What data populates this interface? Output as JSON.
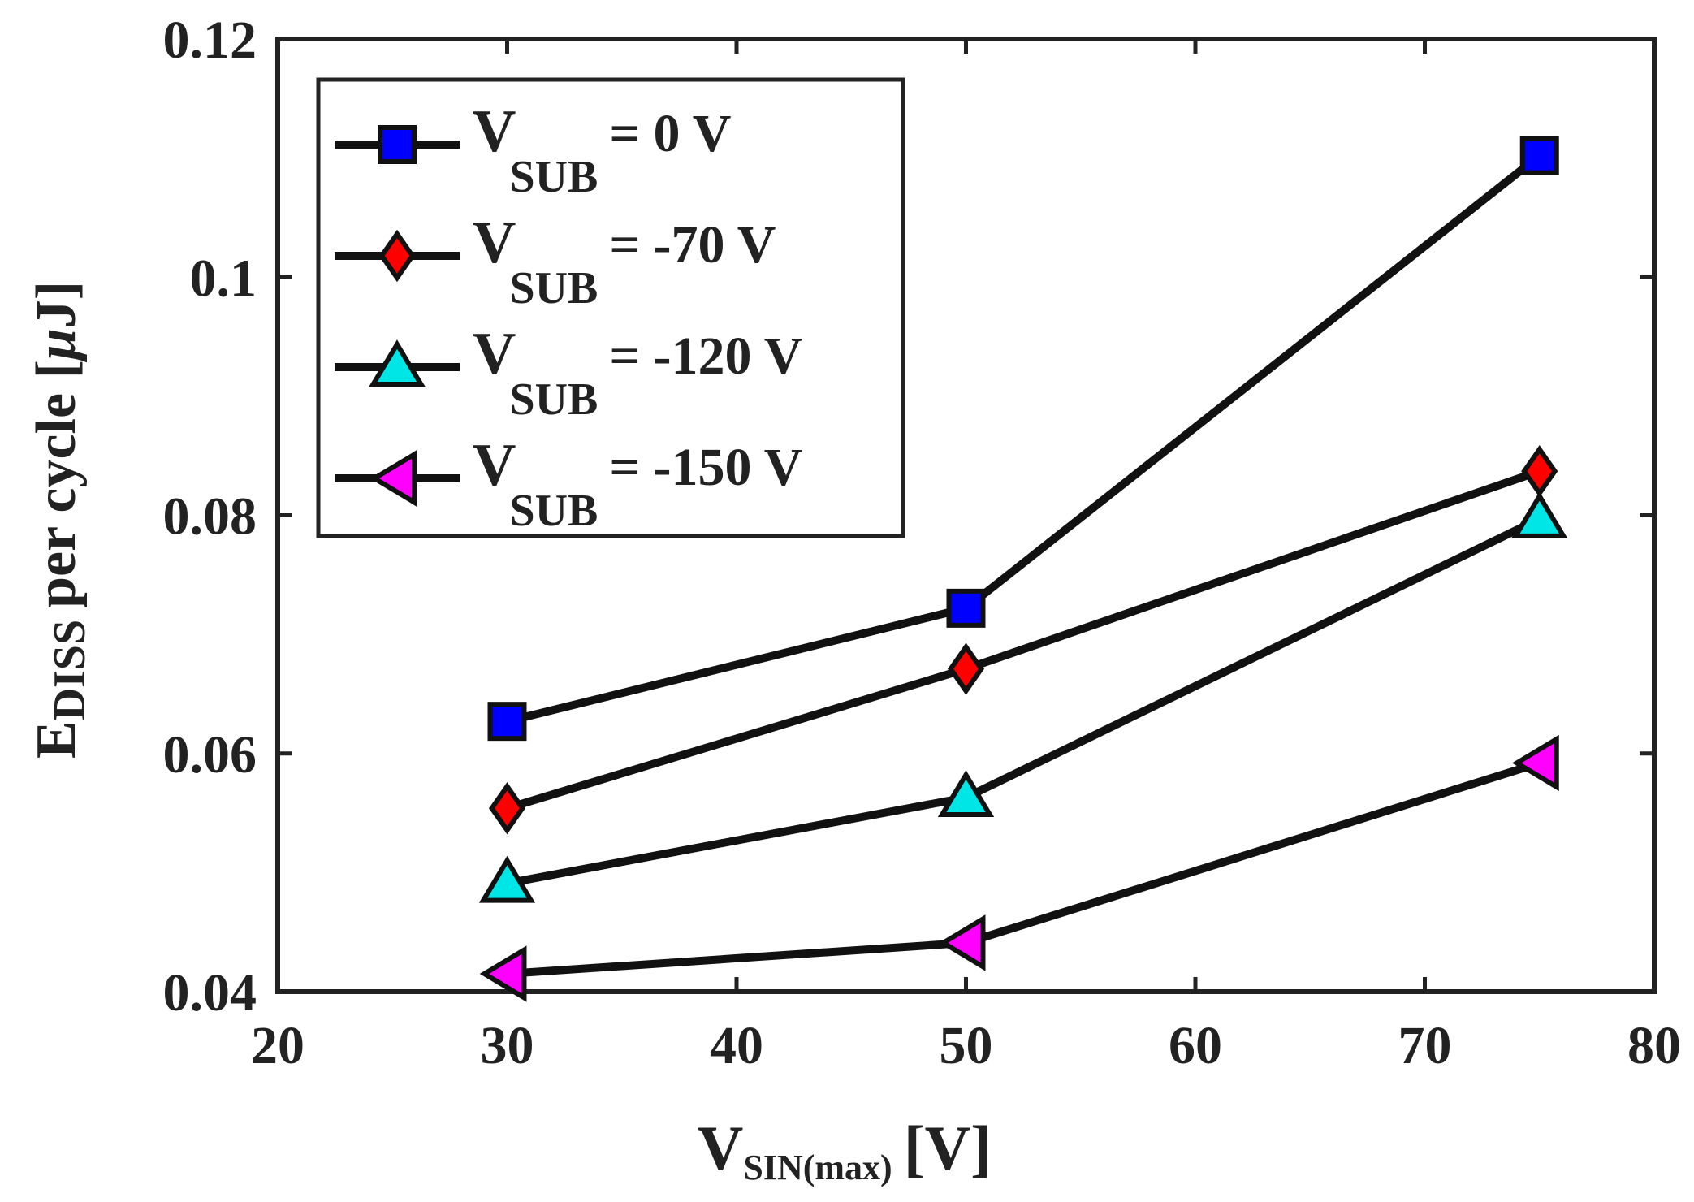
{
  "chart_data": {
    "type": "line",
    "title": "",
    "xlabel": {
      "main": "V",
      "sub": "SIN(max)",
      "unit": "[V]"
    },
    "ylabel": {
      "main": "E",
      "sub": "DISS",
      "rest": "per cycle [",
      "mu": "μ",
      "unit": "J]"
    },
    "xlim": [
      20,
      80
    ],
    "ylim": [
      0.04,
      0.12
    ],
    "xticks": [
      20,
      30,
      40,
      50,
      60,
      70,
      80
    ],
    "xtick_labels": [
      "20",
      "30",
      "40",
      "50",
      "60",
      "70",
      "80"
    ],
    "yticks": [
      0.04,
      0.06,
      0.08,
      0.1,
      0.12
    ],
    "ytick_labels": [
      "0.04",
      "0.06",
      "0.08",
      "0.1",
      "0.12"
    ],
    "grid": false,
    "legend_position": "top-left",
    "x": [
      30,
      50,
      75
    ],
    "series": [
      {
        "name": "V SUB = 0 V",
        "label_main": "V",
        "label_sub": "SUB",
        "label_rest": "= 0 V",
        "marker": "square",
        "color": "#0000ff",
        "values": [
          0.0627,
          0.0722,
          0.1102
        ]
      },
      {
        "name": "V SUB = -70 V",
        "label_main": "V",
        "label_sub": "SUB",
        "label_rest": "= -70 V",
        "marker": "diamond",
        "color": "#ff0000",
        "values": [
          0.0554,
          0.0671,
          0.0837
        ]
      },
      {
        "name": "V SUB = -120 V",
        "label_main": "V",
        "label_sub": "SUB",
        "label_rest": "= -120 V",
        "marker": "triangle-up",
        "color": "#00e5e5",
        "values": [
          0.0491,
          0.0563,
          0.0797
        ]
      },
      {
        "name": "V SUB = -150 V",
        "label_main": "V",
        "label_sub": "SUB",
        "label_rest": "= -150 V",
        "marker": "triangle-left",
        "color": "#ff00ff",
        "values": [
          0.0415,
          0.0441,
          0.0592
        ]
      }
    ]
  }
}
